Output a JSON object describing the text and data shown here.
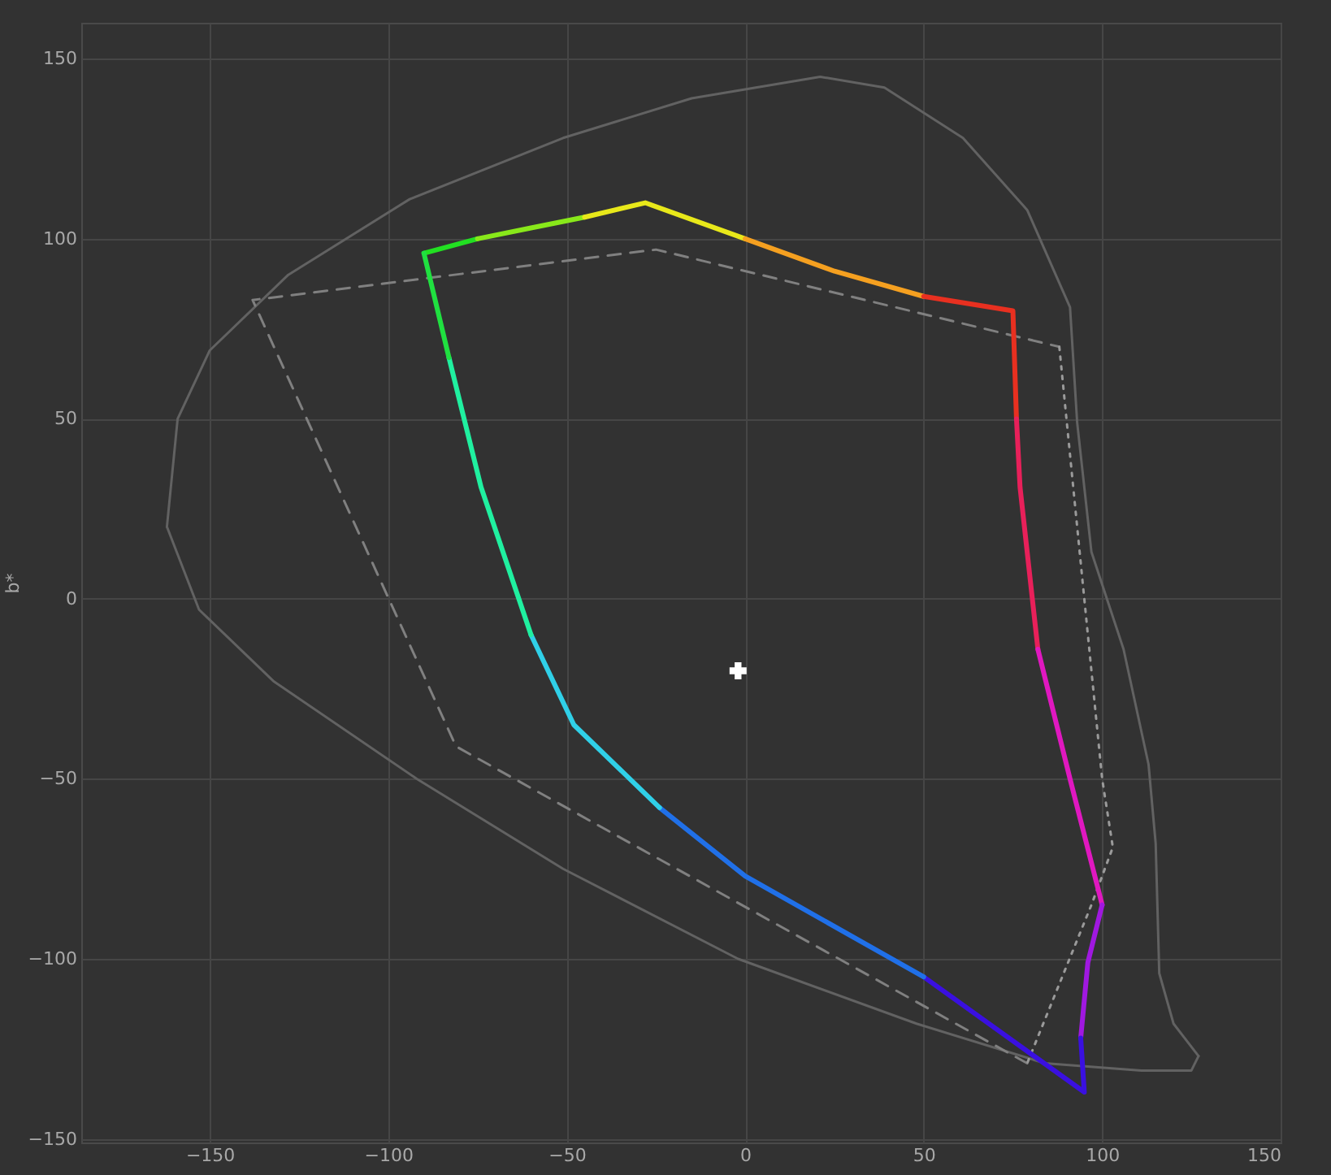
{
  "chart_data": {
    "type": "line",
    "ylabel": "b*",
    "xlim": [
      -186,
      150
    ],
    "ylim": [
      -151,
      160
    ],
    "xticks": [
      -150,
      -100,
      -50,
      0,
      50,
      100,
      150
    ],
    "yticks": [
      -150,
      -100,
      -50,
      0,
      50,
      100,
      150
    ],
    "grid": true,
    "line_style": "solid",
    "marker": "none",
    "series": [
      {
        "color": "#626262",
        "x": [
          -162,
          -159,
          -150,
          -128,
          -94,
          -51,
          -15,
          21,
          39,
          61,
          79,
          91,
          93,
          97,
          106,
          113,
          115,
          116,
          120,
          127
        ],
        "values": [
          20,
          50,
          69,
          90,
          111,
          128,
          139,
          145,
          142,
          128,
          108,
          81,
          49,
          13,
          -14,
          -46,
          -68,
          -104,
          -118,
          -127
        ]
      },
      {
        "color": "#626262",
        "x": [
          -162,
          -153,
          -132,
          -92,
          -51,
          -2,
          48,
          84,
          111,
          125,
          127
        ],
        "values": [
          20,
          -3,
          -23,
          -50,
          -75,
          -100,
          -118,
          -129,
          -131,
          -131,
          -127
        ]
      },
      {
        "color": "#808080",
        "line_style": "dashed",
        "x": [
          79,
          -81,
          -138,
          -25,
          88
        ],
        "values": [
          -129,
          -41,
          83,
          97,
          70
        ]
      },
      {
        "color": "#9a9a9a",
        "line_style": "dotted",
        "x": [
          88,
          100,
          103,
          97,
          79
        ],
        "values": [
          70,
          -50,
          -69,
          -85,
          -129
        ]
      },
      {
        "color": "#22e022",
        "x": [
          -90,
          -75
        ],
        "values": [
          96,
          100
        ]
      },
      {
        "color": "#88e81a",
        "x": [
          -75,
          -60,
          -45
        ],
        "values": [
          100,
          103,
          106
        ]
      },
      {
        "color": "#e8e81a",
        "x": [
          -45,
          -28,
          0
        ],
        "values": [
          106,
          110,
          100
        ]
      },
      {
        "color": "#f5a020",
        "x": [
          0,
          25,
          50
        ],
        "values": [
          100,
          91,
          84
        ]
      },
      {
        "color": "#e83020",
        "x": [
          50,
          75,
          76
        ],
        "values": [
          84,
          80,
          50
        ]
      },
      {
        "color": "#e8205a",
        "x": [
          76,
          77,
          82
        ],
        "values": [
          50,
          31,
          -14
        ]
      },
      {
        "color": "#e018c0",
        "x": [
          82,
          91,
          100
        ],
        "values": [
          -14,
          -50,
          -85
        ]
      },
      {
        "color": "#a018e0",
        "x": [
          100,
          96,
          94
        ],
        "values": [
          -85,
          -101,
          -122
        ]
      },
      {
        "color": "#3a10e0",
        "x": [
          94,
          95,
          50
        ],
        "values": [
          -122,
          -137,
          -105
        ]
      },
      {
        "color": "#2070e8",
        "x": [
          50,
          0,
          -24
        ],
        "values": [
          -105,
          -77,
          -58
        ]
      },
      {
        "color": "#30d0e8",
        "x": [
          -24,
          -48,
          -60
        ],
        "values": [
          -58,
          -35,
          -10
        ]
      },
      {
        "color": "#20f0a0",
        "x": [
          -60,
          -74,
          -83
        ],
        "values": [
          -10,
          31,
          67
        ]
      },
      {
        "color": "#20e040",
        "x": [
          -83,
          -90
        ],
        "values": [
          67,
          96
        ]
      },
      {
        "type": "scatter",
        "marker": "cross",
        "color": "#ffffff",
        "x": [
          -2
        ],
        "values": [
          -20
        ]
      }
    ]
  }
}
